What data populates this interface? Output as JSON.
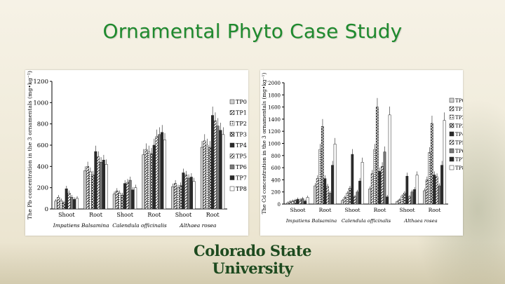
{
  "slide": {
    "title": "Ornamental Phyto Case Study",
    "logo_text": "Colorado State University"
  },
  "colors": {
    "title": "#1f8a2e",
    "logo": "#1d4a1f",
    "bar": "#333333"
  },
  "chart_data": [
    {
      "type": "bar",
      "ylabel": "The Pb concentration in the 3 ornamentals (mg•kg⁻¹)",
      "ylim": [
        0,
        1200
      ],
      "yticks": [
        0,
        200,
        400,
        600,
        800,
        1000,
        1200
      ],
      "categories": [
        "Shoot",
        "Root",
        "Shoot",
        "Root",
        "Shoot",
        "Root"
      ],
      "groups": [
        "Impatiens Balsamina",
        "Calendula officinalis",
        "Althaea rosea"
      ],
      "legend_position": "right",
      "series": [
        {
          "name": "TP0",
          "values": [
            75,
            360,
            140,
            510,
            210,
            580
          ],
          "pattern": "light"
        },
        {
          "name": "TP1",
          "values": [
            110,
            400,
            170,
            560,
            240,
            640
          ],
          "pattern": "hatch"
        },
        {
          "name": "TP2",
          "values": [
            80,
            350,
            150,
            540,
            200,
            600
          ],
          "pattern": "dots"
        },
        {
          "name": "TP3",
          "values": [
            60,
            320,
            130,
            520,
            220,
            580
          ],
          "pattern": "cross"
        },
        {
          "name": "TP4",
          "values": [
            190,
            540,
            240,
            600,
            340,
            880
          ],
          "pattern": "dark"
        },
        {
          "name": "TP5",
          "values": [
            150,
            490,
            250,
            680,
            320,
            830
          ],
          "pattern": "hatch"
        },
        {
          "name": "TP6",
          "values": [
            110,
            440,
            270,
            700,
            290,
            780
          ],
          "pattern": "mid"
        },
        {
          "name": "TP7",
          "values": [
            90,
            460,
            180,
            720,
            300,
            740
          ],
          "pattern": "dark"
        },
        {
          "name": "TP8",
          "values": [
            100,
            420,
            200,
            650,
            260,
            700
          ],
          "pattern": "white"
        }
      ]
    },
    {
      "type": "bar",
      "ylabel": "The Cd concentration in the 3 ornamentals (mg•kg⁻¹)",
      "ylim": [
        0,
        2000
      ],
      "yticks": [
        0,
        200,
        400,
        600,
        800,
        1000,
        1200,
        1400,
        1600,
        1800,
        2000
      ],
      "categories": [
        "Shoot",
        "Root",
        "Shoot",
        "Root",
        "Shoot",
        "Root"
      ],
      "groups": [
        "Impatiens Balsamina",
        "Calendula officinalis",
        "Althaea rosea"
      ],
      "legend_position": "right",
      "series": [
        {
          "name": "TP0",
          "values": [
            20,
            300,
            60,
            250,
            40,
            220
          ],
          "pattern": "light"
        },
        {
          "name": "TP1",
          "values": [
            40,
            420,
            110,
            500,
            70,
            400
          ],
          "pattern": "hatch"
        },
        {
          "name": "TP2",
          "values": [
            50,
            900,
            180,
            900,
            130,
            850
          ],
          "pattern": "dots"
        },
        {
          "name": "TP3",
          "values": [
            60,
            1280,
            260,
            1600,
            180,
            1330
          ],
          "pattern": "cross"
        },
        {
          "name": "TP4",
          "values": [
            80,
            420,
            820,
            540,
            460,
            480
          ],
          "pattern": "dark"
        },
        {
          "name": "TP5",
          "values": [
            70,
            290,
            120,
            620,
            120,
            450
          ],
          "pattern": "hatch"
        },
        {
          "name": "TP6",
          "values": [
            90,
            180,
            200,
            860,
            200,
            300
          ],
          "pattern": "mid"
        },
        {
          "name": "TP7",
          "values": [
            50,
            640,
            380,
            120,
            240,
            640
          ],
          "pattern": "dark"
        },
        {
          "name": "TP8",
          "values": [
            110,
            990,
            690,
            1470,
            480,
            1380
          ],
          "pattern": "white"
        }
      ]
    }
  ]
}
